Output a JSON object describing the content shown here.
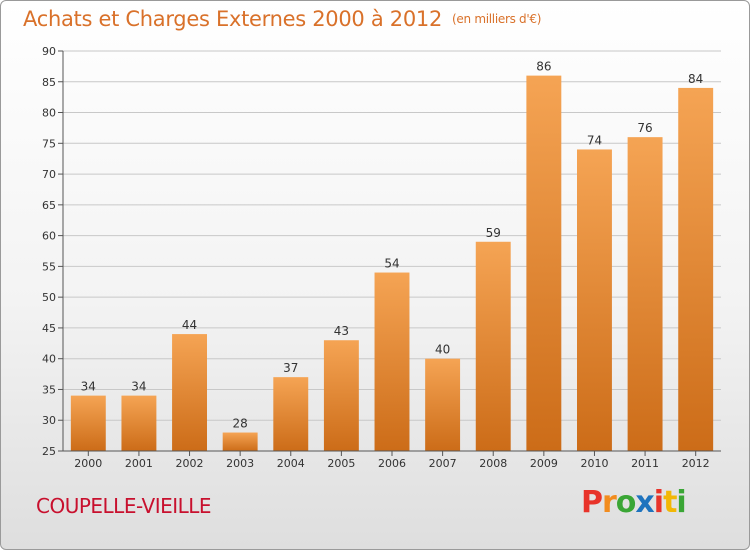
{
  "header": {
    "title": "Achats et Charges Externes 2000 à 2012",
    "unit_note": "(en milliers d'€)"
  },
  "footer": {
    "commune": "COUPELLE-VIEILLE",
    "logo_letters": [
      "P",
      "r",
      "o",
      "x",
      "i",
      "t",
      "i"
    ]
  },
  "colors": {
    "title": "#d9712a",
    "commune": "#c8102e",
    "bar_top": "#f5a454",
    "bar_bottom": "#cc6c18",
    "grid": "#c8c8c8",
    "logo": [
      "#e8332a",
      "#f28c1e",
      "#3aa635",
      "#1e73be",
      "#e8332a",
      "#f2b705",
      "#3aa635"
    ]
  },
  "chart_data": {
    "type": "bar",
    "categories": [
      "2000",
      "2001",
      "2002",
      "2003",
      "2004",
      "2005",
      "2006",
      "2007",
      "2008",
      "2009",
      "2010",
      "2011",
      "2012"
    ],
    "values": [
      34,
      34,
      44,
      28,
      37,
      43,
      54,
      40,
      59,
      86,
      74,
      76,
      84
    ],
    "ylim": [
      25,
      90
    ],
    "yticks": [
      25,
      30,
      35,
      40,
      45,
      50,
      55,
      60,
      65,
      70,
      75,
      80,
      85,
      90
    ],
    "grid": true,
    "data_labels": true
  }
}
